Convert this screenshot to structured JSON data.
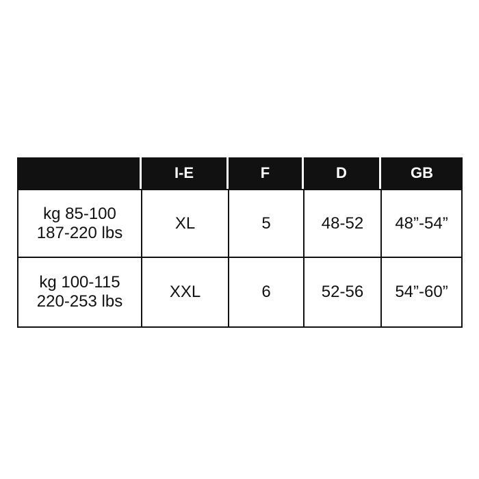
{
  "table": {
    "header": [
      "I-E",
      "F",
      "D",
      "GB"
    ],
    "rows": [
      {
        "label": [
          "kg 85-100",
          "187-220 lbs"
        ],
        "cells": [
          "XL",
          "5",
          "48-52",
          "48”-54”"
        ]
      },
      {
        "label": [
          "kg 100-115",
          "220-253 lbs"
        ],
        "cells": [
          "XXL",
          "6",
          "52-56",
          "54”-60”"
        ]
      }
    ]
  }
}
